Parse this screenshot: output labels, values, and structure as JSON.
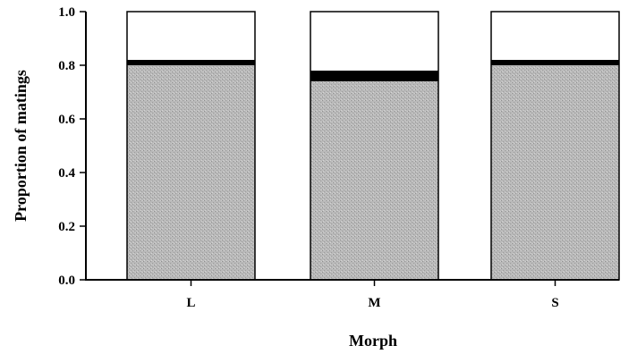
{
  "chart_data": {
    "type": "bar",
    "stacked": true,
    "xlabel": "Morph",
    "ylabel": "Proportion of matings",
    "ylim": [
      0,
      1.0
    ],
    "yticks": [
      "0.0",
      "0.2",
      "0.4",
      "0.6",
      "0.8",
      "1.0"
    ],
    "categories": [
      "L",
      "M",
      "S"
    ],
    "series": [
      {
        "values": [
          0.8,
          0.74,
          0.8
        ],
        "color": "#b4b4b4",
        "pattern": "stippled"
      },
      {
        "values": [
          0.02,
          0.04,
          0.02
        ],
        "color": "#000000"
      },
      {
        "values": [
          0.18,
          0.22,
          0.18
        ],
        "color": "#ffffff"
      }
    ],
    "grid": false,
    "legend": "none"
  }
}
